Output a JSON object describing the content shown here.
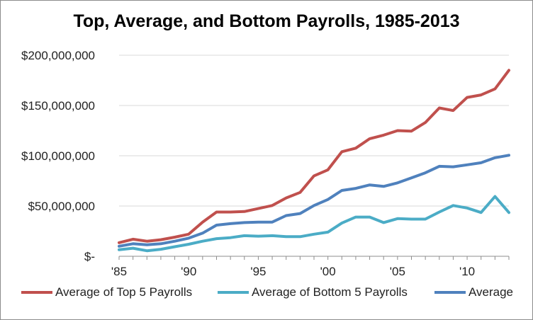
{
  "chart_data": {
    "type": "line",
    "title": "Top, Average, and Bottom Payrolls, 1985-2013",
    "xlabel": "",
    "ylabel": "",
    "x": [
      1985,
      1986,
      1987,
      1988,
      1989,
      1990,
      1991,
      1992,
      1993,
      1994,
      1995,
      1996,
      1997,
      1998,
      1999,
      2000,
      2001,
      2002,
      2003,
      2004,
      2005,
      2006,
      2007,
      2008,
      2009,
      2010,
      2011,
      2012,
      2013
    ],
    "x_tick_labels": [
      "'85",
      "'90",
      "'95",
      "'00",
      "'05",
      "'10"
    ],
    "x_ticks": [
      1985,
      1990,
      1995,
      2000,
      2005,
      2010
    ],
    "y_tick_labels": [
      "$-",
      "$50,000,000",
      "$100,000,000",
      "$150,000,000",
      "$200,000,000"
    ],
    "y_ticks": [
      0,
      50000000,
      100000000,
      150000000,
      200000000
    ],
    "ylim": [
      0,
      200000000
    ],
    "xlim": [
      1985,
      2013
    ],
    "grid": "horizontal",
    "legend": "bottom",
    "series": [
      {
        "name": "Average of Top 5 Payrolls",
        "color": "#c0504d",
        "values": [
          13500000,
          17000000,
          15000000,
          16500000,
          19000000,
          22000000,
          34000000,
          44000000,
          44000000,
          44500000,
          47500000,
          50500000,
          58000000,
          63500000,
          80000000,
          86000000,
          104000000,
          107500000,
          117000000,
          120500000,
          125000000,
          124500000,
          133000000,
          147500000,
          145000000,
          158000000,
          160500000,
          166500000,
          185000000
        ]
      },
      {
        "name": "Average of Bottom 5 Payrolls",
        "color": "#4bacc6",
        "values": [
          6500000,
          8000000,
          5500000,
          7000000,
          9500000,
          12000000,
          15000000,
          17500000,
          18500000,
          20500000,
          20000000,
          20500000,
          19500000,
          19500000,
          22000000,
          24000000,
          33000000,
          39000000,
          39000000,
          33500000,
          37500000,
          37000000,
          37000000,
          44000000,
          50500000,
          48000000,
          43500000,
          59500000,
          43500000
        ]
      },
      {
        "name": "Average",
        "color": "#4f81bd",
        "values": [
          10000000,
          12500000,
          11500000,
          12500000,
          15000000,
          18000000,
          23000000,
          31000000,
          32500000,
          33500000,
          34000000,
          34000000,
          40500000,
          42500000,
          50500000,
          56500000,
          65500000,
          67500000,
          71000000,
          69500000,
          73000000,
          78000000,
          83000000,
          89500000,
          89000000,
          91000000,
          93000000,
          98000000,
          100500000
        ]
      }
    ]
  }
}
